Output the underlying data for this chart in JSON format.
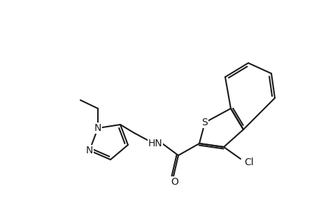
{
  "background_color": "#ffffff",
  "line_color": "#1a1a1a",
  "line_width": 1.5,
  "figsize": [
    4.6,
    3.0
  ],
  "dpi": 100,
  "font_size": 9,
  "atom_labels": {
    "S": "S",
    "N1": "N",
    "N2": "N",
    "HN": "HN",
    "O": "O",
    "Cl": "Cl"
  }
}
